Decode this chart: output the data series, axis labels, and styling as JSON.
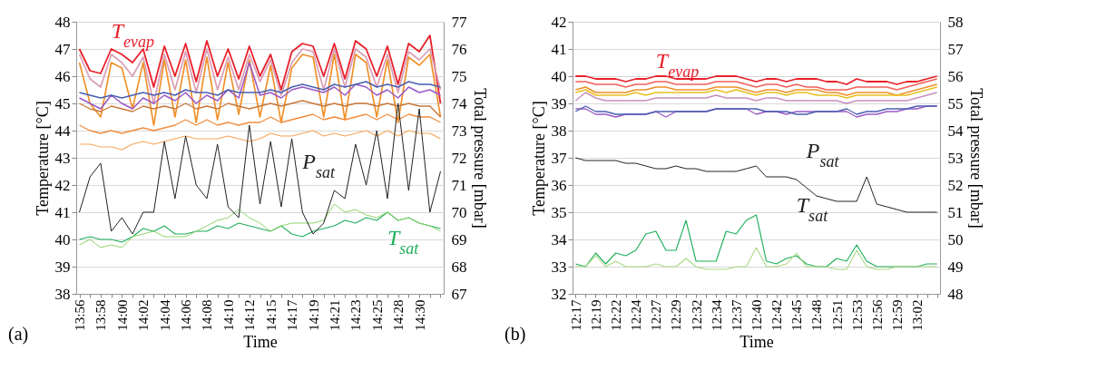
{
  "chart_data": [
    {
      "type": "line",
      "xlabel": "Time",
      "ylabel": "Temperature [°C]",
      "y2label": "Total pressure [mbar]",
      "categories": [
        "13:56",
        null,
        "13:58",
        null,
        "14:00",
        null,
        "14:02",
        null,
        "14:04",
        null,
        "14:06",
        null,
        "14:08",
        null,
        "14:10",
        null,
        "14:12",
        null,
        "14:15",
        null,
        "14:17",
        null,
        "14:19",
        null,
        "14:21",
        null,
        "14:23",
        null,
        "14:25",
        null,
        "14:28",
        null,
        "14:30",
        null,
        null
      ],
      "ylim": [
        38,
        48
      ],
      "yticks": [
        38,
        39,
        40,
        41,
        42,
        43,
        44,
        45,
        46,
        47,
        48
      ],
      "y2lim": [
        67,
        77
      ],
      "y2ticks": [
        67,
        68,
        69,
        70,
        71,
        72,
        73,
        74,
        75,
        76,
        77
      ],
      "grid": "y",
      "legend": false,
      "annotations": [
        "T$_{evap}$",
        "P$_{sat}$",
        "T$_{sat}$",
        "(a)"
      ],
      "series": [
        {
          "color": "#e8202a",
          "values": [
            47,
            46.2,
            46.1,
            47,
            46.8,
            46.5,
            47,
            45.6,
            47.1,
            46,
            47.2,
            45.8,
            47.3,
            46,
            47,
            45.9,
            47.1,
            46,
            46.8,
            45.5,
            46.9,
            47.2,
            47.1,
            46,
            47.2,
            45.9,
            47.3,
            47,
            46,
            47.1,
            45.7,
            47.2,
            46.9,
            47.5,
            45
          ]
        },
        {
          "color": "#d9a0b8",
          "values": [
            46.8,
            45.9,
            45.6,
            46.8,
            46.5,
            46,
            46.7,
            45,
            46.8,
            45.5,
            46.9,
            45.4,
            47,
            45.5,
            46.7,
            45.5,
            46.8,
            45.8,
            46.6,
            45.3,
            46.5,
            47,
            46.9,
            45.5,
            47,
            45.6,
            47,
            46.7,
            45.6,
            46.8,
            45.4,
            46.9,
            46.6,
            47,
            45.5
          ]
        },
        {
          "color": "#f0902a",
          "values": [
            46.5,
            45,
            44.5,
            46.5,
            46.3,
            44.8,
            46.5,
            44.2,
            46.6,
            44.5,
            46.6,
            44.3,
            46.7,
            44.4,
            46.5,
            44.6,
            46.6,
            44.5,
            46.4,
            44.3,
            46.3,
            46.8,
            46.7,
            44.5,
            46.8,
            44.4,
            46.8,
            46.5,
            44.5,
            46.6,
            44.3,
            46.7,
            46.4,
            46.8,
            44.5
          ]
        },
        {
          "color": "#9b59c6",
          "values": [
            45.2,
            45,
            44.8,
            45.3,
            45,
            44.8,
            45.2,
            45,
            45.3,
            45.1,
            45.4,
            45,
            45.3,
            45.1,
            45.5,
            45.2,
            46.5,
            45.3,
            45.4,
            45.2,
            45.5,
            45.6,
            45.5,
            45.4,
            45.6,
            45.3,
            45.7,
            45.6,
            45.3,
            45.5,
            45.2,
            45.6,
            45.4,
            45.5,
            45.3
          ]
        },
        {
          "color": "#4a5fb0",
          "values": [
            45.4,
            45.3,
            45.2,
            45.3,
            45.2,
            45.3,
            45.4,
            45.3,
            45.4,
            45.3,
            45.5,
            45.4,
            45.4,
            45.3,
            45.5,
            45.4,
            45.4,
            45.4,
            45.5,
            45.4,
            45.6,
            45.7,
            45.6,
            45.5,
            45.7,
            45.6,
            45.7,
            45.8,
            45.6,
            45.7,
            45.6,
            45.8,
            45.7,
            45.7,
            45.6
          ]
        },
        {
          "color": "#c8783a",
          "values": [
            45,
            44.8,
            44.7,
            44.9,
            44.8,
            44.7,
            44.9,
            44.8,
            44.9,
            44.8,
            45,
            44.8,
            44.9,
            44.8,
            45,
            44.9,
            44.8,
            44.9,
            45,
            44.9,
            45,
            45.1,
            45,
            44.9,
            45,
            44.9,
            45,
            45,
            44.9,
            45,
            44.9,
            45,
            44.9,
            44.9,
            44.5
          ]
        },
        {
          "color": "#f28c3c",
          "values": [
            44.2,
            44,
            43.9,
            44,
            43.9,
            44,
            44.1,
            44,
            44.1,
            44.2,
            44.4,
            44.2,
            44.4,
            44.2,
            44.3,
            44.2,
            44.3,
            44.3,
            44.5,
            44.3,
            44.4,
            44.5,
            44.6,
            44.4,
            44.5,
            44.4,
            44.5,
            44.6,
            44.4,
            44.6,
            44.4,
            44.6,
            44.5,
            44.5,
            44.3
          ]
        },
        {
          "color": "#f7a65a",
          "values": [
            43.5,
            43.5,
            43.4,
            43.4,
            43.3,
            43.5,
            43.6,
            43.5,
            43.6,
            43.7,
            43.8,
            43.7,
            43.7,
            43.7,
            43.8,
            43.7,
            43.6,
            43.7,
            43.9,
            43.8,
            43.8,
            43.9,
            44,
            43.8,
            43.9,
            43.8,
            43.9,
            44,
            43.8,
            44,
            43.8,
            44,
            43.9,
            43.9,
            43.7
          ]
        },
        {
          "color": "#222222",
          "axis": "y2",
          "values": [
            70,
            71.3,
            71.8,
            69.3,
            69.8,
            69.2,
            70,
            70,
            72.6,
            70.5,
            72.8,
            71,
            70.5,
            72.5,
            70.2,
            69.8,
            73.2,
            70.3,
            72.6,
            70.2,
            72.7,
            70,
            69.2,
            69.6,
            70.8,
            70.5,
            72.5,
            71,
            73,
            70.5,
            74,
            70.8,
            73.8,
            70,
            71.5
          ]
        },
        {
          "color": "#1fae5a",
          "values": [
            40,
            40.1,
            40,
            40,
            39.9,
            40.1,
            40.4,
            40.3,
            40.5,
            40.2,
            40.2,
            40.3,
            40.3,
            40.5,
            40.4,
            40.6,
            40.5,
            40.4,
            40.3,
            40.5,
            40.2,
            40.1,
            40.3,
            40.4,
            40.5,
            40.7,
            40.6,
            40.8,
            40.7,
            41,
            40.7,
            40.8,
            40.6,
            40.5,
            40.4
          ]
        },
        {
          "color": "#8fd46a",
          "values": [
            39.8,
            40,
            39.7,
            39.8,
            39.7,
            40.1,
            40.2,
            40.3,
            40.1,
            40.1,
            40.1,
            40.3,
            40.5,
            40.7,
            40.8,
            41.1,
            40.8,
            40.6,
            40.3,
            40.5,
            40.6,
            40.6,
            40.6,
            40.7,
            41.3,
            41,
            41.1,
            40.9,
            40.8,
            41,
            40.7,
            40.8,
            40.6,
            40.5,
            40.3
          ]
        }
      ]
    },
    {
      "type": "line",
      "xlabel": "Time",
      "ylabel": "Temperature [°C]",
      "y2label": "Total pressure [mbar]",
      "categories": [
        "12:17",
        null,
        "12:19",
        null,
        "12:22",
        null,
        "12:24",
        null,
        "12:27",
        null,
        "12:29",
        null,
        "12:32",
        null,
        "12:34",
        null,
        "12:37",
        null,
        "12:40",
        null,
        "12:42",
        null,
        "12:45",
        null,
        "12:48",
        null,
        "12:51",
        null,
        "12:53",
        null,
        "12:56",
        null,
        "12:59",
        null,
        "13:02",
        null,
        null
      ],
      "ylim": [
        32,
        42
      ],
      "yticks": [
        32,
        33,
        34,
        35,
        36,
        37,
        38,
        39,
        40,
        41,
        42
      ],
      "y2lim": [
        48,
        58
      ],
      "y2ticks": [
        48,
        49,
        50,
        51,
        52,
        53,
        54,
        55,
        56,
        57,
        58
      ],
      "grid": "y",
      "legend": false,
      "annotations": [
        "T$_{evap}$",
        "P$_{sat}$",
        "T$_{sat}$",
        "(b)"
      ],
      "series": [
        {
          "color": "#e8202a",
          "values": [
            40,
            40,
            39.9,
            39.9,
            39.9,
            39.8,
            39.9,
            39.9,
            40,
            40,
            39.9,
            39.9,
            39.9,
            39.9,
            40,
            40,
            40,
            39.9,
            39.8,
            39.9,
            39.9,
            39.8,
            39.9,
            39.9,
            39.9,
            39.8,
            39.8,
            39.7,
            39.9,
            39.8,
            39.8,
            39.8,
            39.7,
            39.8,
            39.8,
            39.9,
            40
          ]
        },
        {
          "color": "#f0605a",
          "values": [
            39.8,
            39.8,
            39.7,
            39.7,
            39.7,
            39.6,
            39.7,
            39.7,
            39.8,
            39.8,
            39.7,
            39.7,
            39.7,
            39.7,
            39.8,
            39.8,
            39.8,
            39.7,
            39.6,
            39.7,
            39.7,
            39.6,
            39.7,
            39.6,
            39.6,
            39.5,
            39.5,
            39.5,
            39.6,
            39.6,
            39.6,
            39.6,
            39.5,
            39.6,
            39.7,
            39.8,
            39.9
          ]
        },
        {
          "color": "#f0902a",
          "values": [
            39.5,
            39.6,
            39.4,
            39.4,
            39.4,
            39.4,
            39.5,
            39.5,
            39.6,
            39.6,
            39.5,
            39.5,
            39.5,
            39.5,
            39.6,
            39.6,
            39.6,
            39.5,
            39.4,
            39.5,
            39.5,
            39.4,
            39.5,
            39.5,
            39.5,
            39.4,
            39.4,
            39.3,
            39.4,
            39.4,
            39.4,
            39.4,
            39.3,
            39.4,
            39.5,
            39.6,
            39.7
          ]
        },
        {
          "color": "#e8c020",
          "values": [
            39.4,
            39.5,
            39.3,
            39.3,
            39.3,
            39.3,
            39.4,
            39.3,
            39.4,
            39.4,
            39.4,
            39.4,
            39.4,
            39.4,
            39.5,
            39.4,
            39.5,
            39.4,
            39.3,
            39.4,
            39.4,
            39.3,
            39.4,
            39.4,
            39.3,
            39.3,
            39.3,
            39.2,
            39.3,
            39.3,
            39.3,
            39.3,
            39.3,
            39.3,
            39.4,
            39.5,
            39.6
          ]
        },
        {
          "color": "#c890c0",
          "values": [
            39.1,
            39.4,
            39.2,
            39.1,
            39.1,
            39.1,
            39.1,
            39.1,
            39.2,
            39.2,
            39.2,
            39.2,
            39.2,
            39.2,
            39.3,
            39.2,
            39.2,
            39.2,
            39.1,
            39.2,
            39.2,
            39.1,
            39.1,
            39.1,
            39.1,
            39.1,
            39.1,
            39,
            39.1,
            39.1,
            39.1,
            39.1,
            39.1,
            39.1,
            39.2,
            39.3,
            39.4
          ]
        },
        {
          "color": "#9b59c6",
          "values": [
            38.8,
            38.8,
            38.6,
            38.6,
            38.5,
            38.6,
            38.6,
            38.6,
            38.7,
            38.5,
            38.7,
            38.7,
            38.7,
            38.7,
            38.8,
            38.8,
            38.8,
            38.8,
            38.6,
            38.7,
            38.7,
            38.6,
            38.7,
            38.7,
            38.7,
            38.7,
            38.7,
            38.7,
            38.5,
            38.6,
            38.6,
            38.7,
            38.7,
            38.8,
            38.8,
            38.9,
            38.9
          ]
        },
        {
          "color": "#4a5fb0",
          "values": [
            38.7,
            38.9,
            38.7,
            38.7,
            38.6,
            38.6,
            38.6,
            38.6,
            38.7,
            38.7,
            38.7,
            38.7,
            38.7,
            38.7,
            38.8,
            38.8,
            38.8,
            38.8,
            38.8,
            38.7,
            38.7,
            38.7,
            38.6,
            38.6,
            38.7,
            38.7,
            38.7,
            38.8,
            38.6,
            38.7,
            38.7,
            38.8,
            38.8,
            38.8,
            38.9,
            38.9,
            38.9
          ]
        },
        {
          "color": "#222222",
          "axis": "y2",
          "values": [
            53,
            52.9,
            52.9,
            52.9,
            52.9,
            52.8,
            52.8,
            52.7,
            52.6,
            52.6,
            52.7,
            52.6,
            52.6,
            52.5,
            52.5,
            52.5,
            52.5,
            52.6,
            52.7,
            52.3,
            52.3,
            52.3,
            52.2,
            51.9,
            51.6,
            51.5,
            51.4,
            51.4,
            51.4,
            52.3,
            51.3,
            51.2,
            51.1,
            51,
            51,
            51,
            51
          ]
        },
        {
          "color": "#1fae5a",
          "values": [
            33.1,
            33,
            33.5,
            33.1,
            33.5,
            33.4,
            33.6,
            34.2,
            34.3,
            33.6,
            33.6,
            34.7,
            33.2,
            33.2,
            33.2,
            34.3,
            34.2,
            34.7,
            34.9,
            33.2,
            33.1,
            33.3,
            33.4,
            33.1,
            33,
            33,
            33.3,
            33.2,
            33.8,
            33.2,
            33,
            33,
            33,
            33,
            33,
            33.1,
            33.1
          ]
        },
        {
          "color": "#a8d880",
          "values": [
            33,
            33,
            33.4,
            33,
            33.2,
            33,
            33,
            33,
            33.1,
            33,
            33,
            33.3,
            33,
            32.9,
            32.9,
            32.9,
            33,
            33,
            33.7,
            33,
            33,
            33.1,
            33.5,
            33,
            33,
            33,
            32.9,
            32.9,
            33.6,
            33,
            32.9,
            32.9,
            33,
            33,
            33,
            33,
            33
          ]
        }
      ]
    }
  ]
}
